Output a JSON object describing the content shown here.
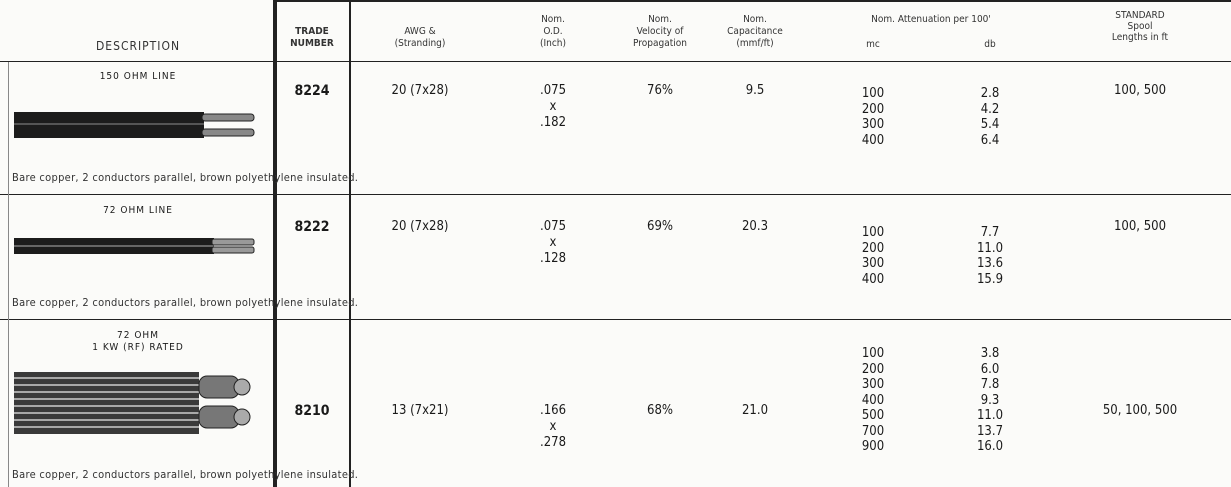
{
  "header": {
    "description": "DESCRIPTION",
    "trade_number": [
      "TRADE",
      "NUMBER"
    ],
    "awg": [
      "AWG &",
      "(Stranding)"
    ],
    "od": [
      "Nom.",
      "O.D.",
      "(Inch)"
    ],
    "velocity": [
      "Nom.",
      "Velocity of",
      "Propagation"
    ],
    "capacitance": [
      "Nom.",
      "Capacitance",
      "(mmf/ft)"
    ],
    "attenuation": "Nom. Attenuation per 100'",
    "mc": "mc",
    "db": "db",
    "spool": [
      "STANDARD",
      "Spool",
      "Lengths in ft"
    ]
  },
  "rows": [
    {
      "title": [
        "150 OHM LINE"
      ],
      "trade_number": "8224",
      "awg": "20 (7x28)",
      "od": [
        ".075",
        "x",
        ".182"
      ],
      "velocity": "76%",
      "capacitance": "9.5",
      "mc": [
        "100",
        "200",
        "300",
        "400"
      ],
      "db": [
        "2.8",
        "4.2",
        "5.4",
        "6.4"
      ],
      "spool": "100, 500",
      "note": "Bare copper, 2 conductors parallel, brown polyethylene insulated."
    },
    {
      "title": [
        "72 OHM LINE"
      ],
      "trade_number": "8222",
      "awg": "20 (7x28)",
      "od": [
        ".075",
        "x",
        ".128"
      ],
      "velocity": "69%",
      "capacitance": "20.3",
      "mc": [
        "100",
        "200",
        "300",
        "400"
      ],
      "db": [
        "7.7",
        "11.0",
        "13.6",
        "15.9"
      ],
      "spool": "100, 500",
      "note": "Bare copper, 2 conductors parallel, brown polyethylene insulated."
    },
    {
      "title": [
        "72 OHM",
        "1 KW (RF) RATED"
      ],
      "trade_number": "8210",
      "awg": "13 (7x21)",
      "od": [
        ".166",
        "x",
        ".278"
      ],
      "velocity": "68%",
      "capacitance": "21.0",
      "mc": [
        "100",
        "200",
        "300",
        "400",
        "500",
        "700",
        "900"
      ],
      "db": [
        "3.8",
        "6.0",
        "7.8",
        "9.3",
        "11.0",
        "13.7",
        "16.0"
      ],
      "spool": "50, 100, 500",
      "note": "Bare copper, 2 conductors parallel, brown polyethylene insulated."
    }
  ]
}
